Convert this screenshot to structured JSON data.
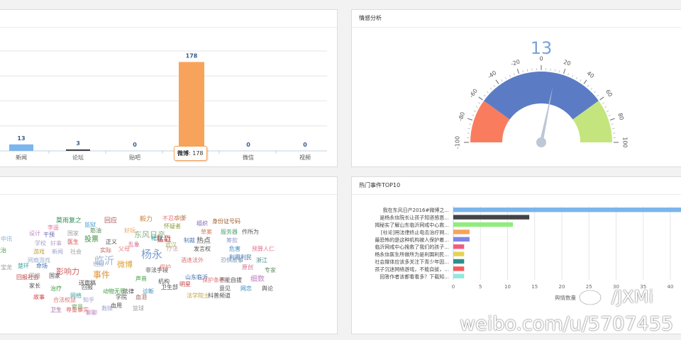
{
  "bar_panel": {
    "chart_data": {
      "type": "bar",
      "categories": [
        "新闻",
        "论坛",
        "贴吧",
        "微博",
        "微信",
        "视频"
      ],
      "values": [
        13,
        3,
        0,
        178,
        0,
        0
      ],
      "value_labels": [
        "13",
        "3",
        "0",
        "178",
        "0",
        "0"
      ],
      "colors": [
        "#7cb5ec",
        "#434348",
        "#90ed7d",
        "#f7a35c",
        "#8085e9",
        "#f15c80"
      ],
      "ylim": [
        0,
        200
      ],
      "grid": true
    },
    "tooltip": {
      "series": "微博",
      "value": "178"
    }
  },
  "gauge_panel": {
    "title": "情感分析",
    "chart_data": {
      "type": "gauge",
      "value": 13,
      "value_label": "13",
      "range": [
        -100,
        100
      ],
      "ticks": [
        "-100",
        "-80",
        "-60",
        "-40",
        "-20",
        "0",
        "20",
        "40",
        "60",
        "80",
        "100"
      ],
      "tick_values": [
        -100,
        -80,
        -60,
        -40,
        -20,
        0,
        20,
        40,
        60,
        80,
        100
      ],
      "bands": [
        {
          "from": -100,
          "to": -60,
          "color": "#fa7c5e"
        },
        {
          "from": -60,
          "to": 60,
          "color": "#5b7cc5"
        },
        {
          "from": 60,
          "to": 100,
          "color": "#c4e57e"
        }
      ]
    }
  },
  "cloud_panel": {
    "words": [
      {
        "t": "莫雨复之",
        "c": "#2e8b57",
        "s": 9
      },
      {
        "t": "回应",
        "c": "#b05050",
        "s": 9
      },
      {
        "t": "毅力",
        "c": "#d08030",
        "s": 9
      },
      {
        "t": "不忍卒读",
        "c": "#e87070",
        "s": 8
      },
      {
        "t": "少爷",
        "c": "#90b050",
        "s": 8
      },
      {
        "t": "组织",
        "c": "#7a5cae",
        "s": 8
      },
      {
        "t": "身份证号码",
        "c": "#a05a2c",
        "s": 8
      },
      {
        "t": "李遥",
        "c": "#e87aa0",
        "s": 8
      },
      {
        "t": "监狱",
        "c": "#3c9ad0",
        "s": 8
      },
      {
        "t": "怀疑者",
        "c": "#8aa030",
        "s": 8
      },
      {
        "t": "筋油",
        "c": "#5f8f5f",
        "s": 8
      },
      {
        "t": "好玩",
        "c": "#e8a060",
        "s": 8
      },
      {
        "t": "东风日产",
        "c": "#88b080",
        "s": 11
      },
      {
        "t": "裙摆",
        "c": "#3aa0a0",
        "s": 8
      },
      {
        "t": "草案",
        "c": "#d08060",
        "s": 8
      },
      {
        "t": "服务器",
        "c": "#50a070",
        "s": 8
      },
      {
        "t": "作所为",
        "c": "#555555",
        "s": 8
      },
      {
        "t": "中讯",
        "c": "#80b0d0",
        "s": 8
      },
      {
        "t": "设计",
        "c": "#c080c0",
        "s": 8
      },
      {
        "t": "干预",
        "c": "#6060b0",
        "s": 8
      },
      {
        "t": "国家",
        "c": "#a0a0a0",
        "s": 8
      },
      {
        "t": "投票",
        "c": "#3b8c3b",
        "s": 10
      },
      {
        "t": "猛戳",
        "c": "#c04040",
        "s": 10
      },
      {
        "t": "武汉",
        "c": "#a0b060",
        "s": 8
      },
      {
        "t": "制裁",
        "c": "#4a7ab0",
        "s": 8
      },
      {
        "t": "热点",
        "c": "#505050",
        "s": 10
      },
      {
        "t": "乱象",
        "c": "#d07090",
        "s": 8
      },
      {
        "t": "筹款",
        "c": "#9a9ad0",
        "s": 8
      },
      {
        "t": "学校",
        "c": "#a0a0d0",
        "s": 8
      },
      {
        "t": "好事",
        "c": "#c0a0d0",
        "s": 8
      },
      {
        "t": "医生",
        "c": "#d05050",
        "s": 8
      },
      {
        "t": "正义",
        "c": "#404040",
        "s": 8
      },
      {
        "t": "实际",
        "c": "#c06060",
        "s": 8
      },
      {
        "t": "杨永",
        "c": "#7a9ad0",
        "s": 15
      },
      {
        "t": "父母",
        "c": "#e08080",
        "s": 8
      },
      {
        "t": "疗法",
        "c": "#d0a0a0",
        "s": 8
      },
      {
        "t": "发言权",
        "c": "#505050",
        "s": 8
      },
      {
        "t": "危害",
        "c": "#3a8ac0",
        "s": 8
      },
      {
        "t": "预算人仁",
        "c": "#e07090",
        "s": 8
      },
      {
        "t": "救治",
        "c": "#3b9a3b",
        "s": 8
      },
      {
        "t": "游戏",
        "c": "#c0a040",
        "s": 8
      },
      {
        "t": "新闻",
        "c": "#a0a0d0",
        "s": 8
      },
      {
        "t": "社会",
        "c": "#a0a0a0",
        "s": 8
      },
      {
        "t": "利用利民",
        "c": "#3a6ab0",
        "s": 8
      },
      {
        "t": "临沂",
        "c": "#9ab0d0",
        "s": 14
      },
      {
        "t": "微博",
        "c": "#e0a030",
        "s": 11
      },
      {
        "t": "酒逢法外",
        "c": "#e07070",
        "s": 8
      },
      {
        "t": "恐惧故事",
        "c": "#80a0c0",
        "s": 8
      },
      {
        "t": "浙江",
        "c": "#3a8a8a",
        "s": 8
      },
      {
        "t": "网瘾游戏",
        "c": "#a0b0d0",
        "s": 8
      },
      {
        "t": "命场",
        "c": "#3a6ab0",
        "s": 8
      },
      {
        "t": "楚环",
        "c": "#3aa0a0",
        "s": 8
      },
      {
        "t": "宝龙",
        "c": "#9a9a9a",
        "s": 8
      },
      {
        "t": "地狱",
        "c": "#9ab0d0",
        "s": 8
      },
      {
        "t": "非法手段",
        "c": "#505050",
        "s": 8
      },
      {
        "t": "保护",
        "c": "#e07070",
        "s": 8
      },
      {
        "t": "原创",
        "c": "#d07090",
        "s": 8
      },
      {
        "t": "影响力",
        "c": "#d06060",
        "s": 11
      },
      {
        "t": "事件",
        "c": "#e09030",
        "s": 12
      },
      {
        "t": "回报",
        "c": "#505050",
        "s": 8
      },
      {
        "t": "明星",
        "c": "#c04040",
        "s": 8
      },
      {
        "t": "专家",
        "c": "#5f8f5f",
        "s": 8
      },
      {
        "t": "回报社会",
        "c": "#c04040",
        "s": 8
      },
      {
        "t": "网络",
        "c": "#9a9a9a",
        "s": 8
      },
      {
        "t": "国家",
        "c": "#505050",
        "s": 8
      },
      {
        "t": "送审稿",
        "c": "#505050",
        "s": 8
      },
      {
        "t": "声音",
        "c": "#3b9a3b",
        "s": 8
      },
      {
        "t": "机构",
        "c": "#505050",
        "s": 8
      },
      {
        "t": "山东临沂",
        "c": "#3a6ab0",
        "s": 8
      },
      {
        "t": "保护条例",
        "c": "#e07070",
        "s": 8
      },
      {
        "t": "不能自拔",
        "c": "#505050",
        "s": 8
      },
      {
        "t": "细数",
        "c": "#c080c0",
        "s": 10
      },
      {
        "t": "家长",
        "c": "#505050",
        "s": 8
      },
      {
        "t": "治疗",
        "c": "#3b9a3b",
        "s": 8
      },
      {
        "t": "知乎",
        "c": "#a0a0d0",
        "s": 8
      },
      {
        "t": "动物无罪",
        "c": "#3b9a3b",
        "s": 8
      },
      {
        "t": "法律",
        "c": "#505050",
        "s": 8
      },
      {
        "t": "诊断",
        "c": "#3a8ac0",
        "s": 8
      },
      {
        "t": "卫生部",
        "c": "#505050",
        "s": 8
      },
      {
        "t": "意见",
        "c": "#505050",
        "s": 8
      },
      {
        "t": "网恋",
        "c": "#3a8ac0",
        "s": 8
      },
      {
        "t": "舆论",
        "c": "#505050",
        "s": 8
      },
      {
        "t": "合法权益",
        "c": "#e07070",
        "s": 8
      },
      {
        "t": "故事",
        "c": "#d04040",
        "s": 8
      },
      {
        "t": "网络",
        "c": "#3aa0a0",
        "s": 8
      },
      {
        "t": "学院",
        "c": "#505050",
        "s": 8
      },
      {
        "t": "血泪",
        "c": "#a06060",
        "s": 8
      },
      {
        "t": "法学院士",
        "c": "#c0a040",
        "s": 8
      },
      {
        "t": "科普频道",
        "c": "#505050",
        "s": 8
      },
      {
        "t": "卫生",
        "c": "#a060a0",
        "s": 8
      },
      {
        "t": "官员",
        "c": "#3b9a3b",
        "s": 8
      },
      {
        "t": "血用",
        "c": "#505050",
        "s": 8
      },
      {
        "t": "救赎",
        "c": "#a0a0d0",
        "s": 8
      },
      {
        "t": "尊重事实",
        "c": "#e07070",
        "s": 8
      },
      {
        "t": "聊聊",
        "c": "#c080c0",
        "s": 8
      },
      {
        "t": "篮球",
        "c": "#a0a0a0",
        "s": 8
      }
    ]
  },
  "top10_panel": {
    "title": "热门事件TOP10",
    "chart_data": {
      "type": "bar",
      "orientation": "horizontal",
      "categories": [
        "我在东风日产2016#微博之...",
        "是杨永信院长让孩子知道感恩...",
        "揭秘实了解山东临沂网戒中心救...",
        "[社论]用法律终止电击治疗网...",
        "最恐怖的是这种机构被人保护着...",
        "临沂网戒中心挽救了我们的孩子...",
        "杨永信医生所做所为是利国利民...",
        "社会媒体应该多关注下青少年因...",
        "孩子沉迷网络游戏，不能自拔，...",
        "回答作者该都看看多？下载知..."
      ],
      "values": [
        46,
        14,
        11,
        3,
        3,
        2,
        2,
        2,
        2,
        2
      ],
      "colors": [
        "#7cb5ec",
        "#434348",
        "#90ed7d",
        "#f7a35c",
        "#8085e9",
        "#f15c80",
        "#e4d354",
        "#2b908f",
        "#f45b5b",
        "#91e8e1"
      ],
      "xticks": [
        "0",
        "5",
        "10",
        "15",
        "20",
        "25",
        "30",
        "35",
        "40"
      ],
      "xtick_values": [
        0,
        5,
        10,
        15,
        20,
        25,
        30,
        35,
        40
      ],
      "xlabel": "舆情数量"
    }
  },
  "watermark": {
    "handle": "/JXMi",
    "url": "weibo.com/u/5707455"
  }
}
